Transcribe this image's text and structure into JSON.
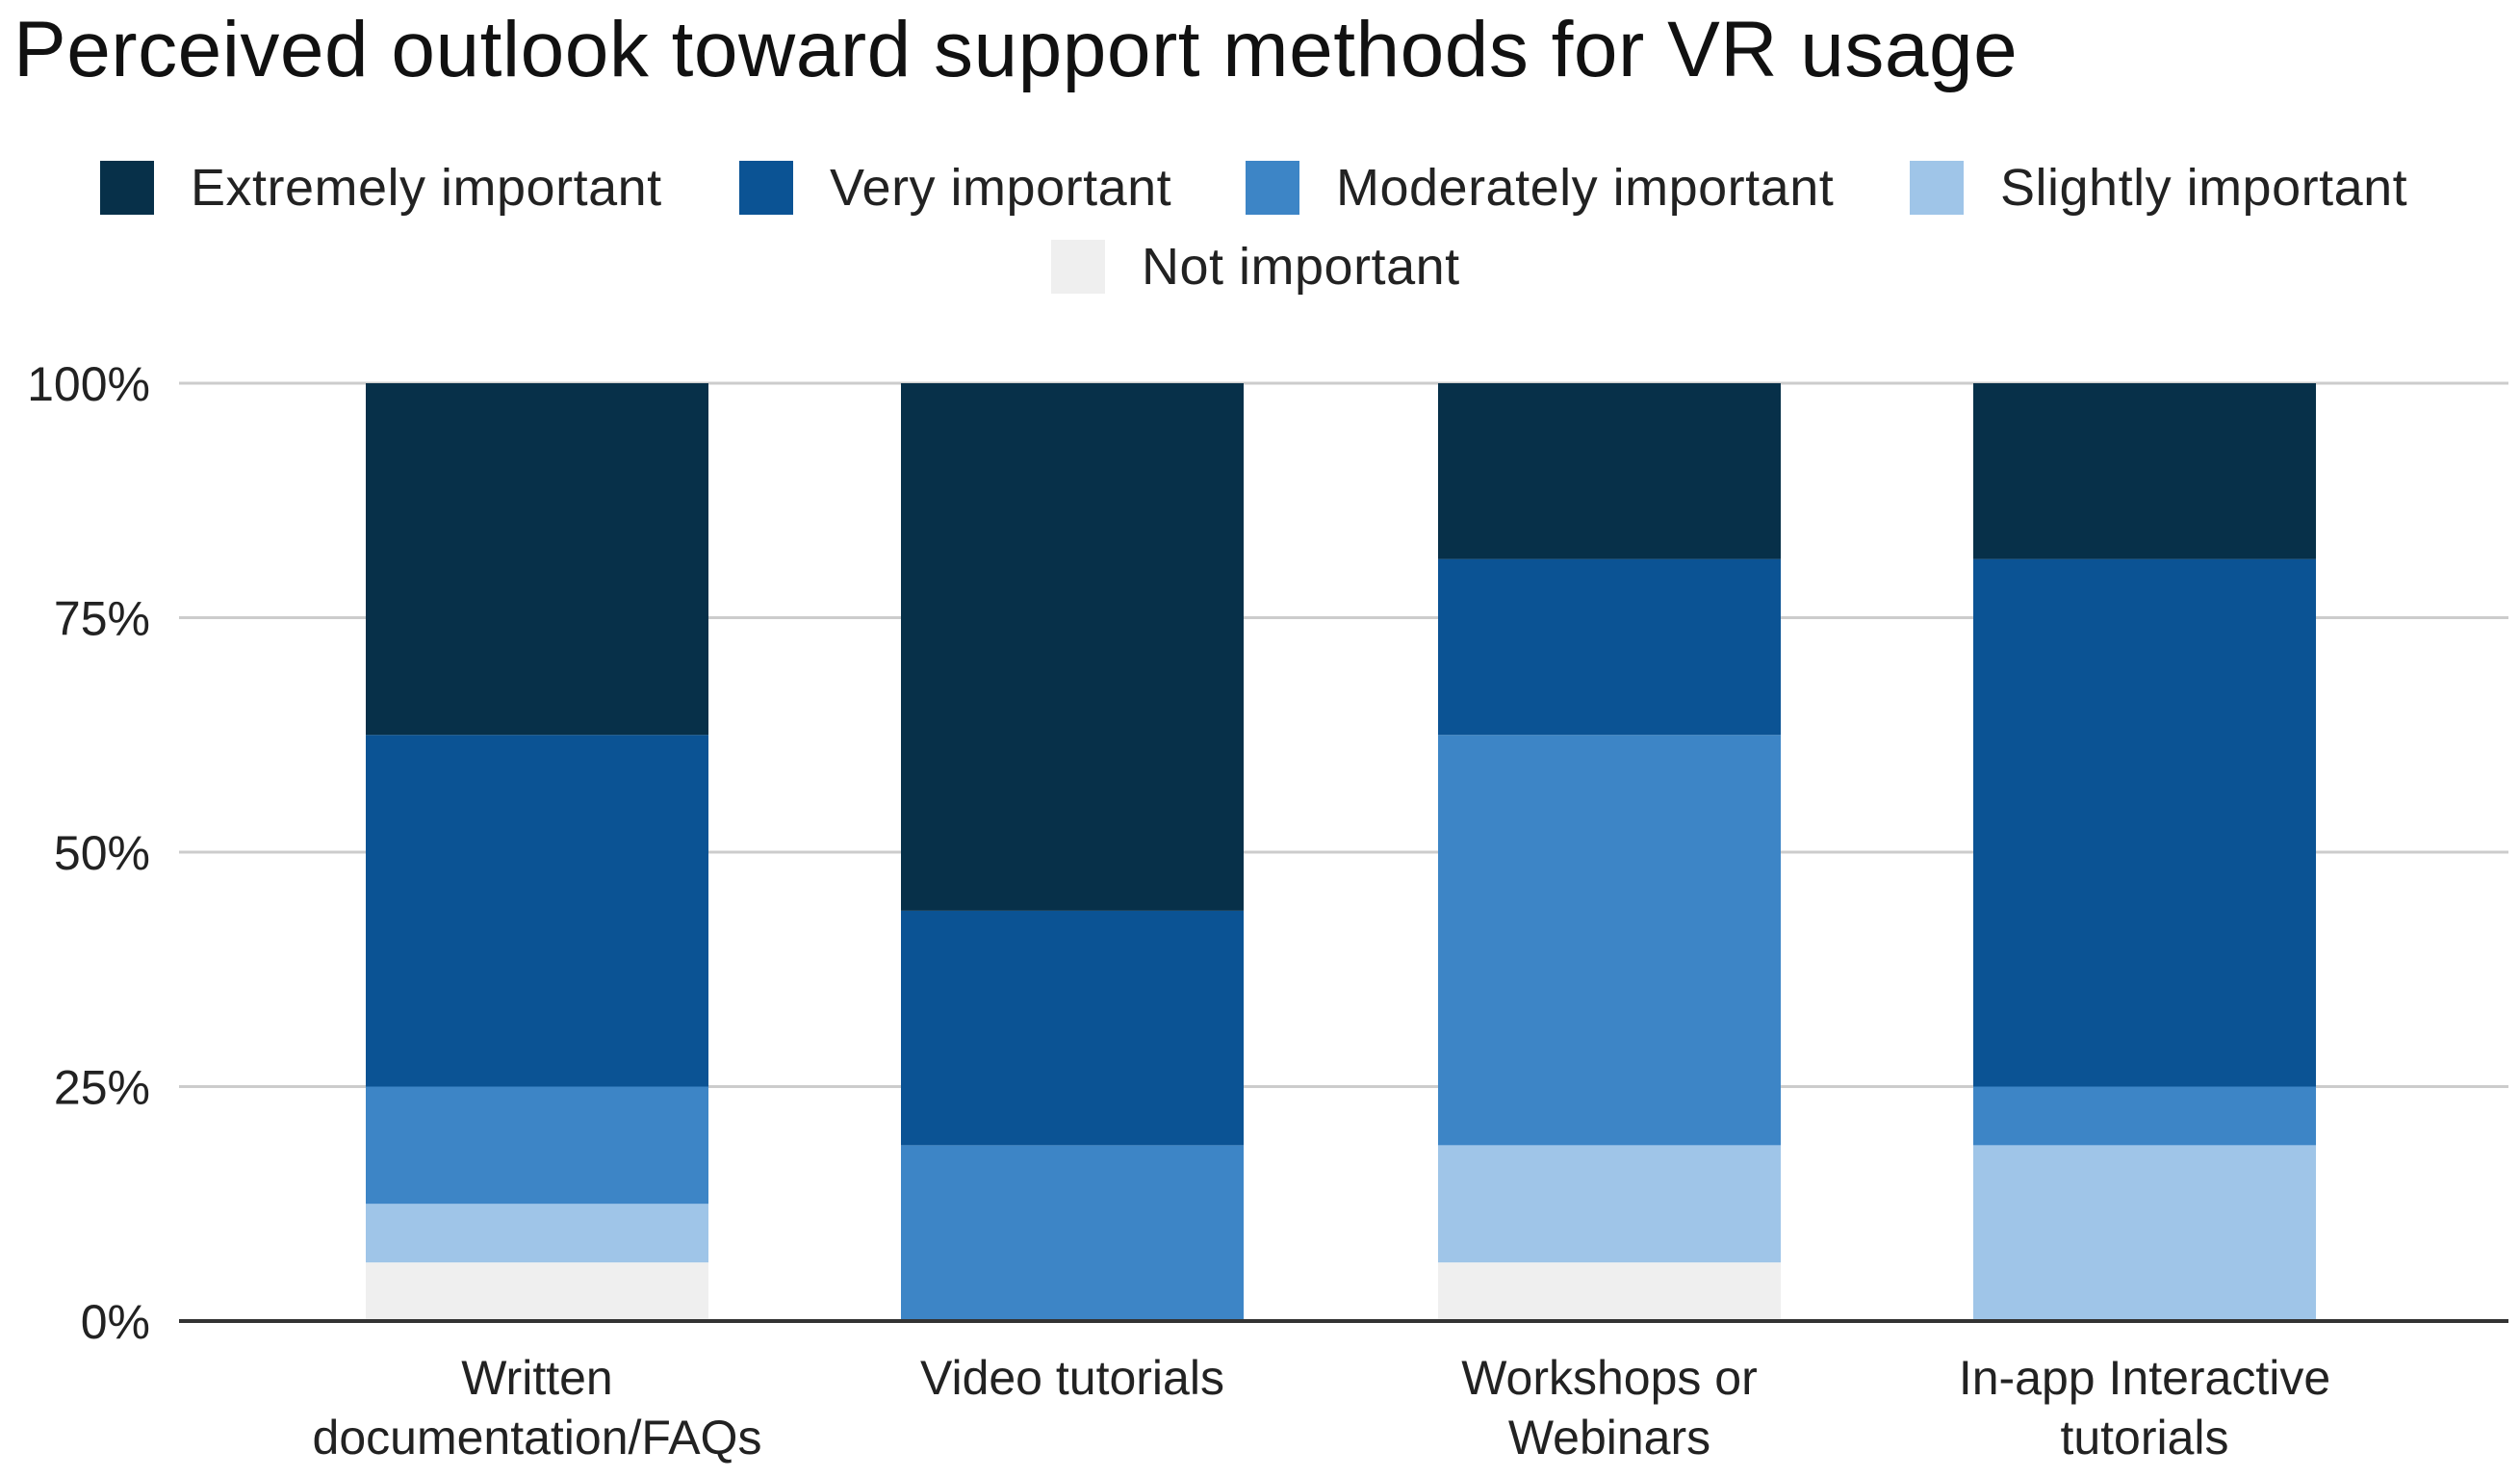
{
  "chart_data": {
    "type": "bar",
    "stacked": true,
    "normalized": true,
    "title": "Perceived outlook toward support methods for VR usage",
    "xlabel": "",
    "ylabel": "",
    "ylim": [
      0,
      100
    ],
    "yticks": [
      "0%",
      "25%",
      "50%",
      "75%",
      "100%"
    ],
    "ytick_values": [
      0,
      25,
      50,
      75,
      100
    ],
    "grid": true,
    "legend_position": "top",
    "categories": [
      [
        "Written",
        "documentation/FAQs"
      ],
      [
        "Video tutorials"
      ],
      [
        "Workshops or",
        "Webinars"
      ],
      [
        "In-app Interactive",
        "tutorials"
      ]
    ],
    "series": [
      {
        "name": "Not important",
        "color": "#efefef",
        "values": [
          6.25,
          0,
          6.25,
          0
        ]
      },
      {
        "name": "Slightly important",
        "color": "#9fc5e8",
        "values": [
          6.25,
          0,
          12.5,
          18.75
        ]
      },
      {
        "name": "Moderately important",
        "color": "#3d85c6",
        "values": [
          12.5,
          18.75,
          43.75,
          6.25
        ]
      },
      {
        "name": "Very important",
        "color": "#0b5394",
        "values": [
          37.5,
          25,
          18.75,
          56.25
        ]
      },
      {
        "name": "Extremely important",
        "color": "#073049",
        "values": [
          37.5,
          56.25,
          18.75,
          18.75
        ]
      }
    ],
    "legend_order": [
      "Extremely important",
      "Very important",
      "Moderately important",
      "Slightly important",
      "Not important"
    ]
  },
  "colors": {
    "grid": "#cccccc",
    "axis": "#333333",
    "text": "#222222"
  }
}
